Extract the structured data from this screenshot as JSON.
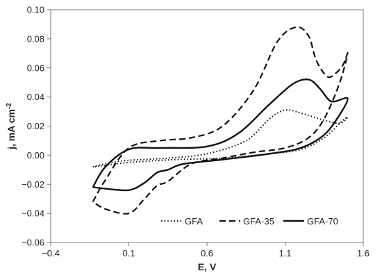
{
  "chart_data": {
    "type": "line",
    "title": "",
    "xlabel": "E, V",
    "ylabel": "j, mA cm",
    "ylabel_superscript": "-2",
    "xlim": [
      -0.4,
      1.6
    ],
    "ylim": [
      -0.06,
      0.1
    ],
    "xticks": [
      -0.4,
      0.1,
      0.6,
      1.1,
      1.6
    ],
    "xtick_labels": [
      "−0.4",
      "0.1",
      "0.6",
      "1.1",
      "1.6"
    ],
    "yticks": [
      -0.06,
      -0.04,
      -0.02,
      0.0,
      0.02,
      0.04,
      0.06,
      0.08,
      0.1
    ],
    "ytick_labels": [
      "−0.06",
      "−0.04",
      "−0.02",
      "0.00",
      "0.02",
      "0.04",
      "0.06",
      "0.08",
      "0.10"
    ],
    "grid": false,
    "legend_position": "bottom-right",
    "series": [
      {
        "name": "GFA",
        "dash": "dotted",
        "color": "#111111",
        "x": [
          -0.13,
          0.05,
          0.35,
          0.6,
          0.85,
          1.0,
          1.1,
          1.2,
          1.35,
          1.45,
          1.5,
          1.47,
          1.35,
          1.2,
          1.0,
          0.7,
          0.4,
          0.1,
          -0.05,
          -0.13
        ],
        "y": [
          -0.008,
          -0.004,
          -0.002,
          0.001,
          0.01,
          0.025,
          0.031,
          0.029,
          0.024,
          0.022,
          0.026,
          0.024,
          0.012,
          0.004,
          0.001,
          -0.002,
          -0.003,
          -0.005,
          -0.007,
          -0.008
        ]
      },
      {
        "name": "GFA-35",
        "dash": "dashed",
        "color": "#111111",
        "x": [
          -0.13,
          -0.05,
          0.1,
          0.3,
          0.5,
          0.7,
          0.9,
          1.05,
          1.17,
          1.25,
          1.3,
          1.37,
          1.42,
          1.47,
          1.5,
          1.45,
          1.35,
          1.25,
          1.1,
          0.9,
          0.7,
          0.5,
          0.35,
          0.28,
          0.2,
          0.1,
          -0.05,
          -0.13
        ],
        "y": [
          -0.032,
          -0.017,
          0.005,
          0.01,
          0.012,
          0.02,
          0.045,
          0.078,
          0.088,
          0.082,
          0.065,
          0.054,
          0.056,
          0.062,
          0.07,
          0.05,
          0.025,
          0.012,
          0.005,
          0.002,
          -0.002,
          -0.006,
          -0.018,
          -0.021,
          -0.03,
          -0.04,
          -0.037,
          -0.032
        ]
      },
      {
        "name": "GFA-70",
        "dash": "solid",
        "color": "#111111",
        "x": [
          -0.13,
          -0.05,
          0.1,
          0.3,
          0.6,
          0.8,
          1.0,
          1.15,
          1.25,
          1.32,
          1.38,
          1.42,
          1.5,
          1.45,
          1.35,
          1.2,
          1.0,
          0.7,
          0.45,
          0.35,
          0.28,
          0.2,
          0.1,
          -0.05,
          -0.13
        ],
        "y": [
          -0.022,
          -0.008,
          0.004,
          0.005,
          0.006,
          0.015,
          0.035,
          0.049,
          0.052,
          0.046,
          0.038,
          0.037,
          0.039,
          0.028,
          0.014,
          0.005,
          0.001,
          -0.003,
          -0.006,
          -0.01,
          -0.012,
          -0.019,
          -0.024,
          -0.023,
          -0.022
        ]
      }
    ]
  }
}
